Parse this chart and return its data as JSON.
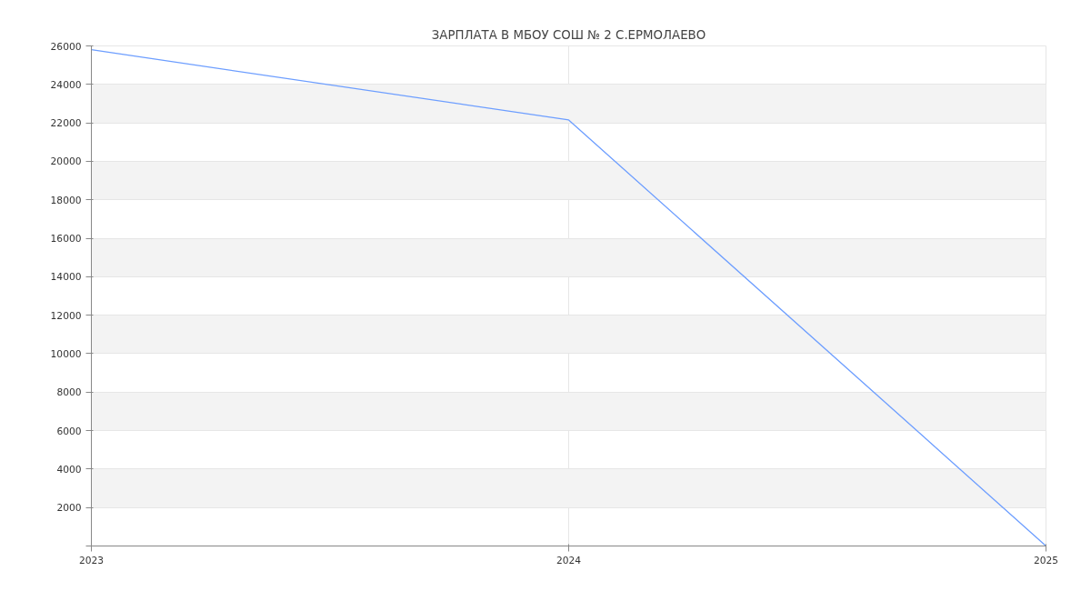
{
  "chart_data": {
    "type": "line",
    "title": "ЗАРПЛАТА В МБОУ СОШ № 2 С.ЕРМОЛАЕВО",
    "categories": [
      "2023",
      "2024",
      "2025"
    ],
    "series": [
      {
        "color": "#6d9eff",
        "values": [
          25800,
          22150,
          0
        ]
      }
    ],
    "ylim": [
      0,
      26000
    ],
    "yticks": [
      {
        "value": 0,
        "label": null
      },
      2000,
      4000,
      6000,
      8000,
      10000,
      12000,
      14000,
      16000,
      18000,
      20000,
      22000,
      24000,
      26000
    ],
    "grid": true,
    "marker": "none",
    "line_style": "solid"
  }
}
